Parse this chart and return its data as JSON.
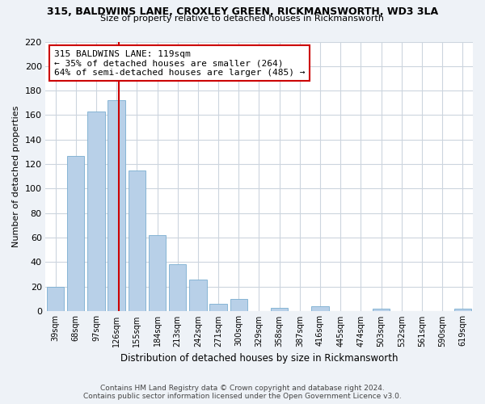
{
  "title": "315, BALDWINS LANE, CROXLEY GREEN, RICKMANSWORTH, WD3 3LA",
  "subtitle": "Size of property relative to detached houses in Rickmansworth",
  "xlabel": "Distribution of detached houses by size in Rickmansworth",
  "ylabel": "Number of detached properties",
  "categories": [
    "39sqm",
    "68sqm",
    "97sqm",
    "126sqm",
    "155sqm",
    "184sqm",
    "213sqm",
    "242sqm",
    "271sqm",
    "300sqm",
    "329sqm",
    "358sqm",
    "387sqm",
    "416sqm",
    "445sqm",
    "474sqm",
    "503sqm",
    "532sqm",
    "561sqm",
    "590sqm",
    "619sqm"
  ],
  "bar_heights": [
    20,
    127,
    163,
    172,
    115,
    62,
    38,
    26,
    6,
    10,
    0,
    3,
    0,
    4,
    0,
    0,
    2,
    0,
    0,
    0,
    2
  ],
  "bar_color": "#b8d0e8",
  "bar_edge_color": "#7aadd0",
  "vline_color": "#cc0000",
  "annotation_title": "315 BALDWINS LANE: 119sqm",
  "annotation_line1": "← 35% of detached houses are smaller (264)",
  "annotation_line2": "64% of semi-detached houses are larger (485) →",
  "annotation_box_color": "#ffffff",
  "annotation_box_edge": "#cc0000",
  "ylim": [
    0,
    220
  ],
  "yticks": [
    0,
    20,
    40,
    60,
    80,
    100,
    120,
    140,
    160,
    180,
    200,
    220
  ],
  "footer_line1": "Contains HM Land Registry data © Crown copyright and database right 2024.",
  "footer_line2": "Contains public sector information licensed under the Open Government Licence v3.0.",
  "background_color": "#eef2f7",
  "plot_bg_color": "#ffffff",
  "grid_color": "#ccd5de"
}
